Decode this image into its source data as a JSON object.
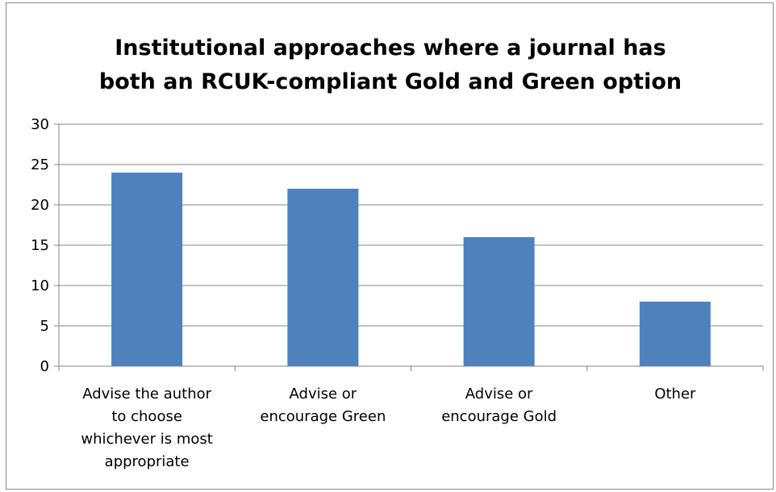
{
  "chart_data": {
    "type": "bar",
    "title_lines": [
      "Institutional approaches where a journal has",
      "both an RCUK-compliant Gold and Green option"
    ],
    "categories": [
      [
        "Advise the author",
        "to choose",
        "whichever is most",
        "appropriate"
      ],
      [
        "Advise or",
        "encourage Green"
      ],
      [
        "Advise or",
        "encourage Gold"
      ],
      [
        "Other"
      ]
    ],
    "values": [
      24,
      22,
      16,
      8
    ],
    "xlabel": "",
    "ylabel": "",
    "ylim": [
      0,
      30
    ],
    "yticks": [
      0,
      5,
      10,
      15,
      20,
      25,
      30
    ],
    "grid": true,
    "legend": "none",
    "bar_color": "#4f81bd",
    "grid_color": "#868686"
  }
}
